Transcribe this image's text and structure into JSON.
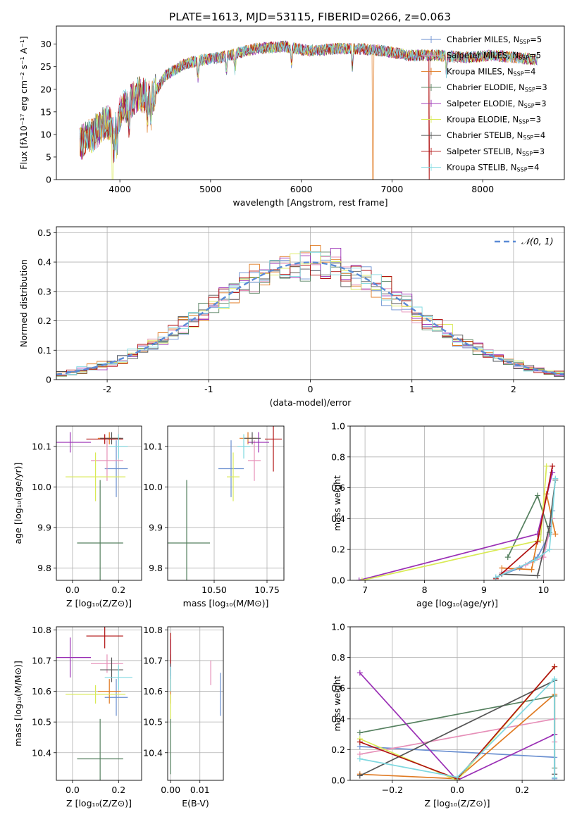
{
  "figure": {
    "title": "PLATE=1613, MJD=53115, FIBERID=0266, z=0.063"
  },
  "series_styles": [
    {
      "name": "Chabrier MILES, N",
      "sub": "SSP",
      "suffix": "=5",
      "color": "#6a8fd0"
    },
    {
      "name": "Salpeter MILES, N",
      "sub": "SSP",
      "suffix": "=5",
      "color": "#e68fb8"
    },
    {
      "name": "Kroupa MILES, N",
      "sub": "SSP",
      "suffix": "=4",
      "color": "#e07a22"
    },
    {
      "name": "Chabrier ELODIE, N",
      "sub": "SSP",
      "suffix": "=3",
      "color": "#55805f"
    },
    {
      "name": "Salpeter ELODIE, N",
      "sub": "SSP",
      "suffix": "=3",
      "color": "#9a2fb5"
    },
    {
      "name": "Kroupa ELODIE, N",
      "sub": "SSP",
      "suffix": "=3",
      "color": "#d9ea55"
    },
    {
      "name": "Chabrier STELIB, N",
      "sub": "SSP",
      "suffix": "=4",
      "color": "#555555"
    },
    {
      "name": "Salpeter STELIB, N",
      "sub": "SSP",
      "suffix": "=3",
      "color": "#b01010"
    },
    {
      "name": "Kroupa STELIB, N",
      "sub": "SSP",
      "suffix": "=4",
      "color": "#7fd8e0"
    }
  ],
  "chart_data": [
    {
      "id": "spectrum",
      "type": "line",
      "xlabel": "wavelength [Angstrom, rest frame]",
      "ylabel": "Flux [fλ10⁻¹⁷ erg cm⁻² s⁻¹ A⁻¹]",
      "xlim": [
        3300,
        8900
      ],
      "ylim": [
        0,
        34
      ],
      "xticks": [
        4000,
        5000,
        6000,
        7000,
        8000
      ],
      "yticks": [
        0,
        5,
        10,
        15,
        20,
        25,
        30
      ],
      "continuum_x": [
        3560,
        3700,
        3850,
        3950,
        4000,
        4100,
        4200,
        4350,
        4500,
        4700,
        4900,
        5100,
        5300,
        5500,
        5800,
        6100,
        6400,
        6600,
        6900,
        7200,
        7500,
        7800,
        8100,
        8400,
        8600
      ],
      "continuum_y": [
        8,
        10,
        13,
        11,
        15,
        17,
        19,
        18,
        23,
        25.5,
        26.5,
        27,
        28,
        29,
        29.5,
        28.5,
        29,
        29,
        28.5,
        27.5,
        27.5,
        27,
        27.5,
        27,
        26.5
      ],
      "absorption_lines": [
        3934,
        3969,
        4102,
        4304,
        4341,
        4861,
        5175,
        5270,
        5893,
        6563,
        7600
      ],
      "dropouts": [
        {
          "x": 3920,
          "series": 5
        },
        {
          "x": 6790,
          "series": 2
        },
        {
          "x": 7410,
          "series": 7
        }
      ]
    },
    {
      "id": "residuals",
      "type": "histogram",
      "xlabel": "(data-model)/error",
      "ylabel": "Normed distribution",
      "xlim": [
        -2.5,
        2.5
      ],
      "ylim": [
        0,
        0.52
      ],
      "xticks": [
        -2,
        -1,
        0,
        1,
        2
      ],
      "yticks": [
        0,
        0.1,
        0.2,
        0.3,
        0.4,
        0.5
      ],
      "bin_width": 0.1,
      "reference_label": "𝒩(0, 1)",
      "reference_color": "#5b8bd6"
    },
    {
      "id": "age_vs_Z",
      "type": "scatter",
      "xlabel": "Z [log₁₀(Z/Z⊙)]",
      "ylabel": "age  [log₁₀(age/yr)]",
      "xlim": [
        -0.07,
        0.3
      ],
      "ylim": [
        9.77,
        10.15
      ],
      "xticks": [
        0.0,
        0.2
      ],
      "xticklabels": [
        "0.0",
        "0.2"
      ],
      "yticks": [
        9.8,
        9.9,
        10.0,
        10.1
      ],
      "yticklabels": [
        "9.8",
        "9.9",
        "10.0",
        "10.1"
      ],
      "points": [
        {
          "s": 0,
          "x": 0.19,
          "xerr": 0.05,
          "y": 10.045,
          "yerr": 0.07
        },
        {
          "s": 1,
          "x": 0.15,
          "xerr": 0.07,
          "y": 10.065,
          "yerr": 0.05
        },
        {
          "s": 2,
          "x": 0.16,
          "xerr": 0.05,
          "y": 10.12,
          "yerr": 0.015
        },
        {
          "s": 3,
          "x": 0.12,
          "xerr": 0.1,
          "y": 9.862,
          "yerr": 0.155
        },
        {
          "s": 4,
          "x": -0.01,
          "xerr": 0.09,
          "y": 10.11,
          "yerr": 0.025
        },
        {
          "s": 5,
          "x": 0.1,
          "xerr": 0.13,
          "y": 10.025,
          "yerr": 0.06
        },
        {
          "s": 6,
          "x": 0.17,
          "xerr": 0.05,
          "y": 10.12,
          "yerr": 0.015
        },
        {
          "s": 7,
          "x": 0.14,
          "xerr": 0.08,
          "y": 10.118,
          "yerr": 0.012
        },
        {
          "s": 8,
          "x": 0.2,
          "xerr": 0.04,
          "y": 10.1,
          "yerr": 0.03
        }
      ]
    },
    {
      "id": "age_vs_mass",
      "type": "scatter",
      "xlabel": "mass [log₁₀(M/M⊙)]",
      "ylabel": "",
      "xlim": [
        10.28,
        10.83
      ],
      "ylim": [
        9.77,
        10.15
      ],
      "xticks": [
        10.5,
        10.75
      ],
      "xticklabels": [
        "10.50",
        "10.75"
      ],
      "yticks": [
        9.8,
        9.9,
        10.0,
        10.1
      ],
      "yticklabels": [
        "9.8",
        "9.9",
        "10.0",
        "10.1"
      ],
      "points": [
        {
          "s": 0,
          "x": 10.58,
          "xerr": 0.06,
          "y": 10.045,
          "yerr": 0.07
        },
        {
          "s": 1,
          "x": 10.69,
          "xerr": 0.03,
          "y": 10.065,
          "yerr": 0.05
        },
        {
          "s": 2,
          "x": 10.66,
          "xerr": 0.04,
          "y": 10.12,
          "yerr": 0.015
        },
        {
          "s": 3,
          "x": 10.37,
          "xerr": 0.11,
          "y": 9.862,
          "yerr": 0.155
        },
        {
          "s": 4,
          "x": 10.71,
          "xerr": 0.05,
          "y": 10.11,
          "yerr": 0.025
        },
        {
          "s": 5,
          "x": 10.59,
          "xerr": 0.03,
          "y": 10.025,
          "yerr": 0.06
        },
        {
          "s": 6,
          "x": 10.68,
          "xerr": 0.04,
          "y": 10.12,
          "yerr": 0.015
        },
        {
          "s": 7,
          "x": 10.78,
          "xerr": 0.04,
          "y": 10.118,
          "yerr": 0.08
        },
        {
          "s": 8,
          "x": 10.64,
          "xerr": 0.03,
          "y": 10.1,
          "yerr": 0.03
        }
      ]
    },
    {
      "id": "weight_vs_age",
      "type": "line",
      "xlabel": "age  [log₁₀(age/yr)]",
      "ylabel": "mass weight",
      "xlim": [
        6.75,
        10.35
      ],
      "ylim": [
        0,
        1
      ],
      "xticks": [
        7,
        8,
        9,
        10
      ],
      "xticklabels": [
        "7",
        "8",
        "9",
        "10"
      ],
      "yticks": [
        0,
        0.2,
        0.4,
        0.6,
        0.8,
        1.0
      ],
      "yticklabels": [
        "0.0",
        "0.2",
        "0.4",
        "0.6",
        "0.8",
        "1.0"
      ],
      "series": [
        {
          "s": 0,
          "x": [
            9.2,
            9.6,
            9.9,
            10.1,
            10.15
          ],
          "y": [
            0.02,
            0.08,
            0.15,
            0.3,
            0.45
          ]
        },
        {
          "s": 1,
          "x": [
            9.3,
            9.7,
            10.0,
            10.15
          ],
          "y": [
            0.05,
            0.1,
            0.15,
            0.4
          ]
        },
        {
          "s": 2,
          "x": [
            9.3,
            9.8,
            10.05,
            10.2
          ],
          "y": [
            0.08,
            0.07,
            0.56,
            0.3
          ]
        },
        {
          "s": 3,
          "x": [
            9.4,
            9.9,
            10.1
          ],
          "y": [
            0.15,
            0.55,
            0.31
          ]
        },
        {
          "s": 4,
          "x": [
            6.9,
            9.9,
            10.15
          ],
          "y": [
            0.0,
            0.3,
            0.7
          ]
        },
        {
          "s": 5,
          "x": [
            6.95,
            9.95,
            10.05
          ],
          "y": [
            0.0,
            0.26,
            0.74
          ]
        },
        {
          "s": 6,
          "x": [
            9.3,
            9.9,
            10.1,
            10.2
          ],
          "y": [
            0.04,
            0.03,
            0.35,
            0.65
          ]
        },
        {
          "s": 7,
          "x": [
            9.2,
            9.9,
            10.15
          ],
          "y": [
            0.01,
            0.25,
            0.74
          ]
        },
        {
          "s": 8,
          "x": [
            9.2,
            9.85,
            10.1,
            10.2
          ],
          "y": [
            0.02,
            0.13,
            0.2,
            0.66
          ]
        }
      ]
    },
    {
      "id": "mass_vs_Z",
      "type": "scatter",
      "xlabel": "Z [log₁₀(Z/Z⊙)]",
      "ylabel": "mass [log₁₀(M/M⊙)]",
      "xlim": [
        -0.07,
        0.3
      ],
      "ylim": [
        10.31,
        10.81
      ],
      "xticks": [
        0.0,
        0.2
      ],
      "xticklabels": [
        "0.0",
        "0.2"
      ],
      "yticks": [
        10.4,
        10.5,
        10.6,
        10.7,
        10.8
      ],
      "yticklabels": [
        "10.4",
        "10.5",
        "10.6",
        "10.7",
        "10.8"
      ],
      "points": [
        {
          "s": 0,
          "x": 0.19,
          "xerr": 0.05,
          "y": 10.58,
          "yerr": 0.06
        },
        {
          "s": 1,
          "x": 0.15,
          "xerr": 0.07,
          "y": 10.69,
          "yerr": 0.03
        },
        {
          "s": 2,
          "x": 0.16,
          "xerr": 0.05,
          "y": 10.6,
          "yerr": 0.04
        },
        {
          "s": 3,
          "x": 0.12,
          "xerr": 0.1,
          "y": 10.38,
          "yerr": 0.13
        },
        {
          "s": 4,
          "x": -0.01,
          "xerr": 0.09,
          "y": 10.71,
          "yerr": 0.065
        },
        {
          "s": 5,
          "x": 0.1,
          "xerr": 0.13,
          "y": 10.59,
          "yerr": 0.03
        },
        {
          "s": 6,
          "x": 0.17,
          "xerr": 0.05,
          "y": 10.67,
          "yerr": 0.04
        },
        {
          "s": 7,
          "x": 0.14,
          "xerr": 0.08,
          "y": 10.78,
          "yerr": 0.04
        },
        {
          "s": 8,
          "x": 0.2,
          "xerr": 0.06,
          "y": 10.645,
          "yerr": 0.04
        }
      ]
    },
    {
      "id": "mass_vs_EBV",
      "type": "scatter",
      "xlabel": "E(B-V)",
      "ylabel": "",
      "xlim": [
        -0.001,
        0.018
      ],
      "ylim": [
        10.31,
        10.81
      ],
      "xticks": [
        0.0,
        0.01
      ],
      "xticklabels": [
        "0.00",
        "0.01"
      ],
      "yticks": [
        10.4,
        10.5,
        10.6,
        10.7,
        10.8
      ],
      "yticklabels": [
        "10.4",
        "10.5",
        "10.6",
        "10.7",
        "10.8"
      ],
      "points": [
        {
          "s": 0,
          "x": 0.017,
          "y": 10.59,
          "yerr": 0.07
        },
        {
          "s": 1,
          "x": 0.0137,
          "y": 10.66,
          "yerr": 0.04
        },
        {
          "s": 2,
          "x": 0.0,
          "y": 10.6,
          "yerr": 0.04
        },
        {
          "s": 3,
          "x": 0.0,
          "y": 10.42,
          "yerr": 0.09
        },
        {
          "s": 4,
          "x": 0.0,
          "y": 10.71,
          "yerr": 0.06
        },
        {
          "s": 5,
          "x": 0.0,
          "y": 10.55,
          "yerr": 0.04
        },
        {
          "s": 6,
          "x": 0.0,
          "y": 10.68,
          "yerr": 0.04
        },
        {
          "s": 7,
          "x": 0.0,
          "y": 10.74,
          "yerr": 0.05
        },
        {
          "s": 8,
          "x": 0.0,
          "y": 10.64,
          "yerr": 0.04
        }
      ]
    },
    {
      "id": "weight_vs_Z",
      "type": "line",
      "xlabel": "Z [log₁₀(Z/Z⊙)]",
      "ylabel": "mass weight",
      "xlim": [
        -0.33,
        0.33
      ],
      "ylim": [
        0,
        1
      ],
      "xticks": [
        -0.2,
        0.0,
        0.2
      ],
      "xticklabels": [
        "−0.2",
        "0.0",
        "0.2"
      ],
      "yticks": [
        0,
        0.2,
        0.4,
        0.6,
        0.8,
        1.0
      ],
      "yticklabels": [
        "0.0",
        "0.2",
        "0.4",
        "0.6",
        "0.8",
        "1.0"
      ],
      "series": [
        {
          "s": 0,
          "x": [
            -0.3,
            0.3,
            0.3
          ],
          "y": [
            0.22,
            0.15,
            0.01
          ]
        },
        {
          "s": 1,
          "x": [
            -0.3,
            0.3,
            0.3
          ],
          "y": [
            0.17,
            0.4,
            0.25
          ]
        },
        {
          "s": 2,
          "x": [
            -0.3,
            0.0,
            0.3,
            0.3
          ],
          "y": [
            0.04,
            0.01,
            0.56,
            0.3
          ]
        },
        {
          "s": 3,
          "x": [
            -0.3,
            0.3,
            0.3
          ],
          "y": [
            0.31,
            0.55,
            0.08
          ]
        },
        {
          "s": 4,
          "x": [
            -0.3,
            0.0,
            0.3
          ],
          "y": [
            0.7,
            0.0,
            0.3
          ]
        },
        {
          "s": 5,
          "x": [
            -0.3,
            0.0,
            0.3
          ],
          "y": [
            0.27,
            0.0,
            0.74
          ]
        },
        {
          "s": 6,
          "x": [
            -0.3,
            0.3,
            0.3
          ],
          "y": [
            0.03,
            0.65,
            0.04
          ]
        },
        {
          "s": 7,
          "x": [
            -0.3,
            0.0,
            0.3
          ],
          "y": [
            0.25,
            0.01,
            0.74
          ]
        },
        {
          "s": 8,
          "x": [
            -0.3,
            0.0,
            0.3,
            0.3
          ],
          "y": [
            0.14,
            0.02,
            0.66,
            0.02
          ]
        }
      ]
    }
  ]
}
